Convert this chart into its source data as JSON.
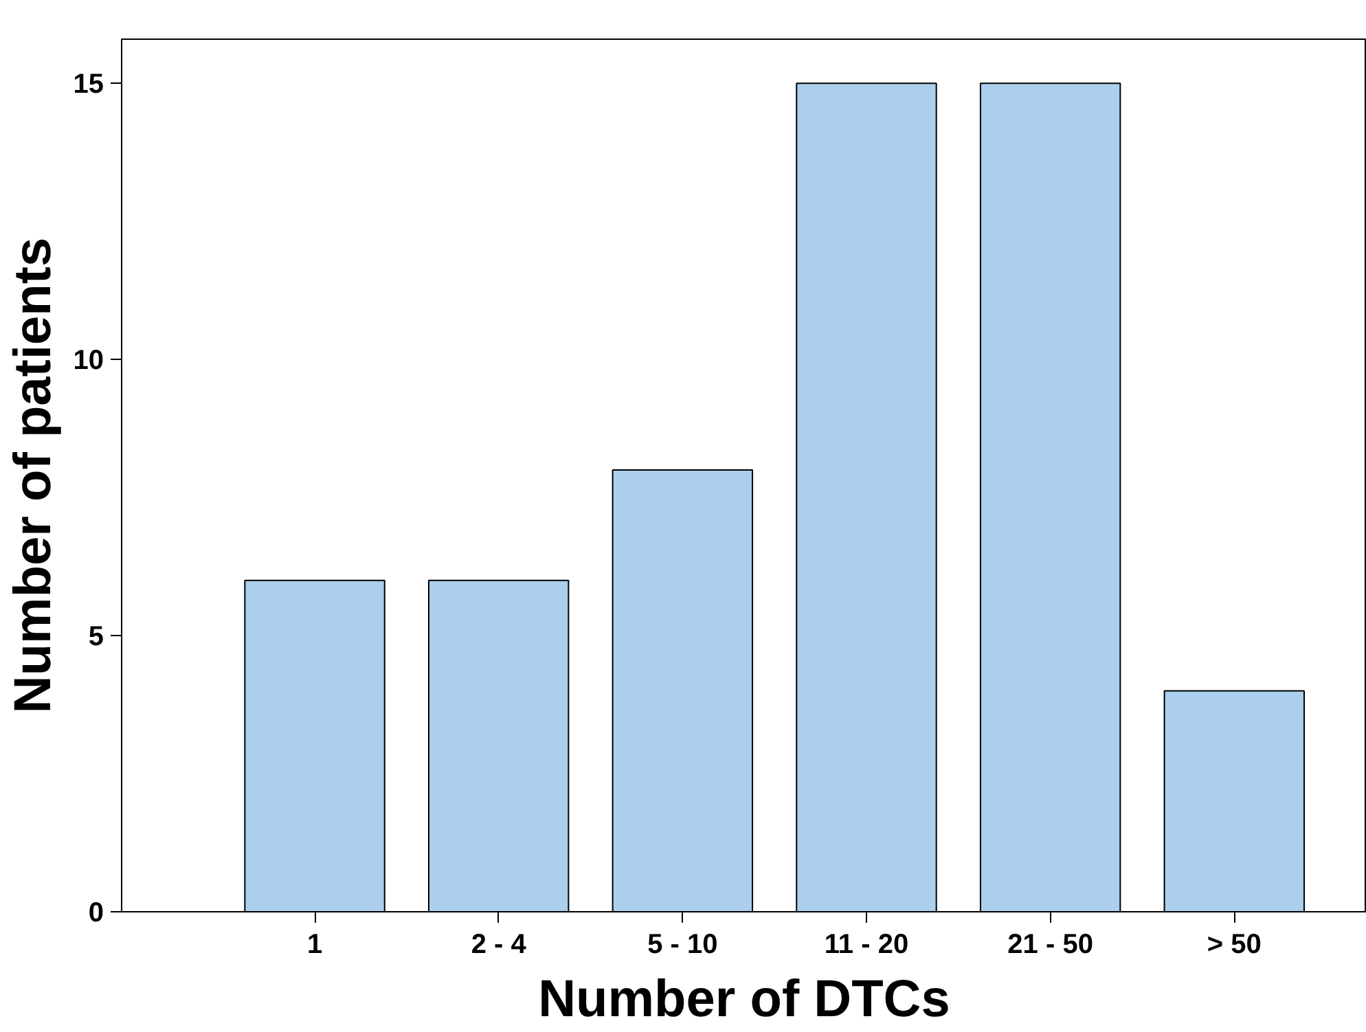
{
  "chart_data": {
    "type": "bar",
    "xlabel": "Number of DTCs",
    "ylabel": "Number of patients",
    "categories": [
      "1",
      "2 - 4",
      "5 - 10",
      "11 - 20",
      "21 - 50",
      "> 50"
    ],
    "values": [
      6,
      6,
      8,
      15,
      15,
      4
    ],
    "color": "#abcfed",
    "ylim": [
      0,
      15.8
    ],
    "yticks": [
      0,
      5,
      10,
      15
    ],
    "grid": false
  }
}
